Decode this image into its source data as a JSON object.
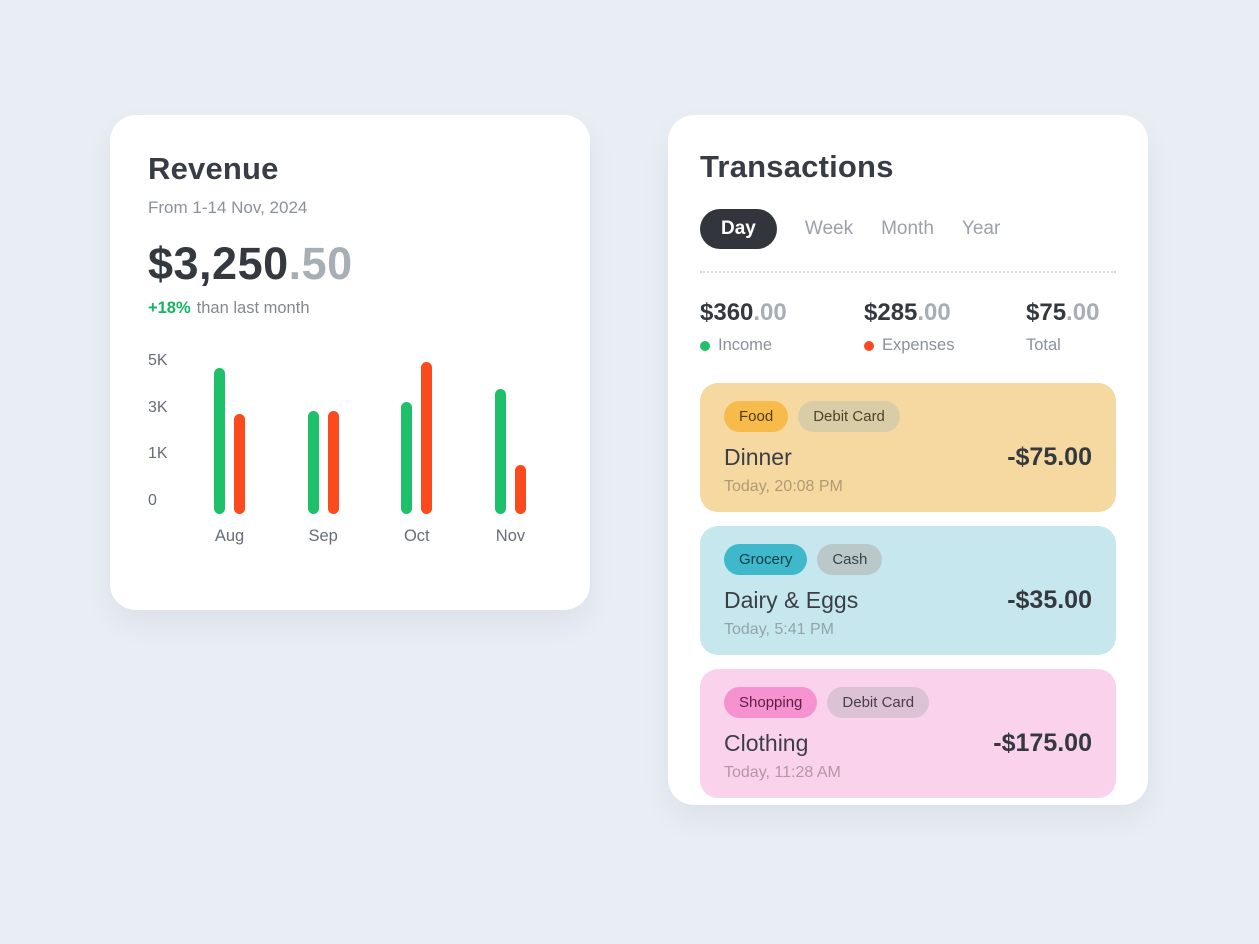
{
  "page": {
    "background": "#e9edf4"
  },
  "revenue": {
    "title": "Revenue",
    "subtitle": "From 1-14 Nov, 2024",
    "amount_main": "$3,250",
    "amount_cents": ".50",
    "delta": "+18%",
    "delta_note": "than last month",
    "delta_color": "#17b35f"
  },
  "chart_data": {
    "type": "bar",
    "categories": [
      "Aug",
      "Sep",
      "Oct",
      "Nov"
    ],
    "series": [
      {
        "name": "Income",
        "color": "#1ec16a",
        "values": [
          4800,
          3400,
          3700,
          4100
        ]
      },
      {
        "name": "Expenses",
        "color": "#fb4a1d",
        "values": [
          3300,
          3400,
          5000,
          1600
        ]
      }
    ],
    "title": "Revenue From 1-14 Nov, 2024",
    "xlabel": "",
    "ylabel": "",
    "ylim": [
      0,
      5000
    ],
    "yticks": [
      "5K",
      "3K",
      "1K",
      "0"
    ],
    "grid": false,
    "legend_position": "none"
  },
  "transactions": {
    "title": "Transactions",
    "tabs": [
      {
        "label": "Day",
        "active": true
      },
      {
        "label": "Week",
        "active": false
      },
      {
        "label": "Month",
        "active": false
      },
      {
        "label": "Year",
        "active": false
      }
    ],
    "summary": [
      {
        "amount_main": "$360",
        "amount_cents": ".00",
        "label": "Income",
        "dot_color": "#1ec16a"
      },
      {
        "amount_main": "$285",
        "amount_cents": ".00",
        "label": "Expenses",
        "dot_color": "#fb4a1d"
      },
      {
        "amount_main": "$75",
        "amount_cents": ".00",
        "label": "Total",
        "dot_color": null
      }
    ],
    "items": [
      {
        "background": "#f6d8a1",
        "tags": [
          {
            "label": "Food",
            "bg": "#f6bb4b",
            "fg": "#4f3c12"
          },
          {
            "label": "Debit Card",
            "bg": "#d9cda7",
            "fg": "#4d4526"
          }
        ],
        "title": "Dinner",
        "amount": "-$75.00",
        "time": "Today, 20:08 PM"
      },
      {
        "background": "#c7e7ee",
        "tags": [
          {
            "label": "Grocery",
            "bg": "#3fb8cb",
            "fg": "#0c3d45"
          },
          {
            "label": "Cash",
            "bg": "#bac8ca",
            "fg": "#36454a"
          }
        ],
        "title": "Dairy & Eggs",
        "amount": "-$35.00",
        "time": "Today, 5:41 PM"
      },
      {
        "background": "#fbd2ec",
        "tags": [
          {
            "label": "Shopping",
            "bg": "#f792d1",
            "fg": "#5a2048"
          },
          {
            "label": "Debit Card",
            "bg": "#dcc3d3",
            "fg": "#4d3a4b"
          }
        ],
        "title": "Clothing",
        "amount": "-$175.00",
        "time": "Today, 11:28 AM"
      }
    ]
  }
}
